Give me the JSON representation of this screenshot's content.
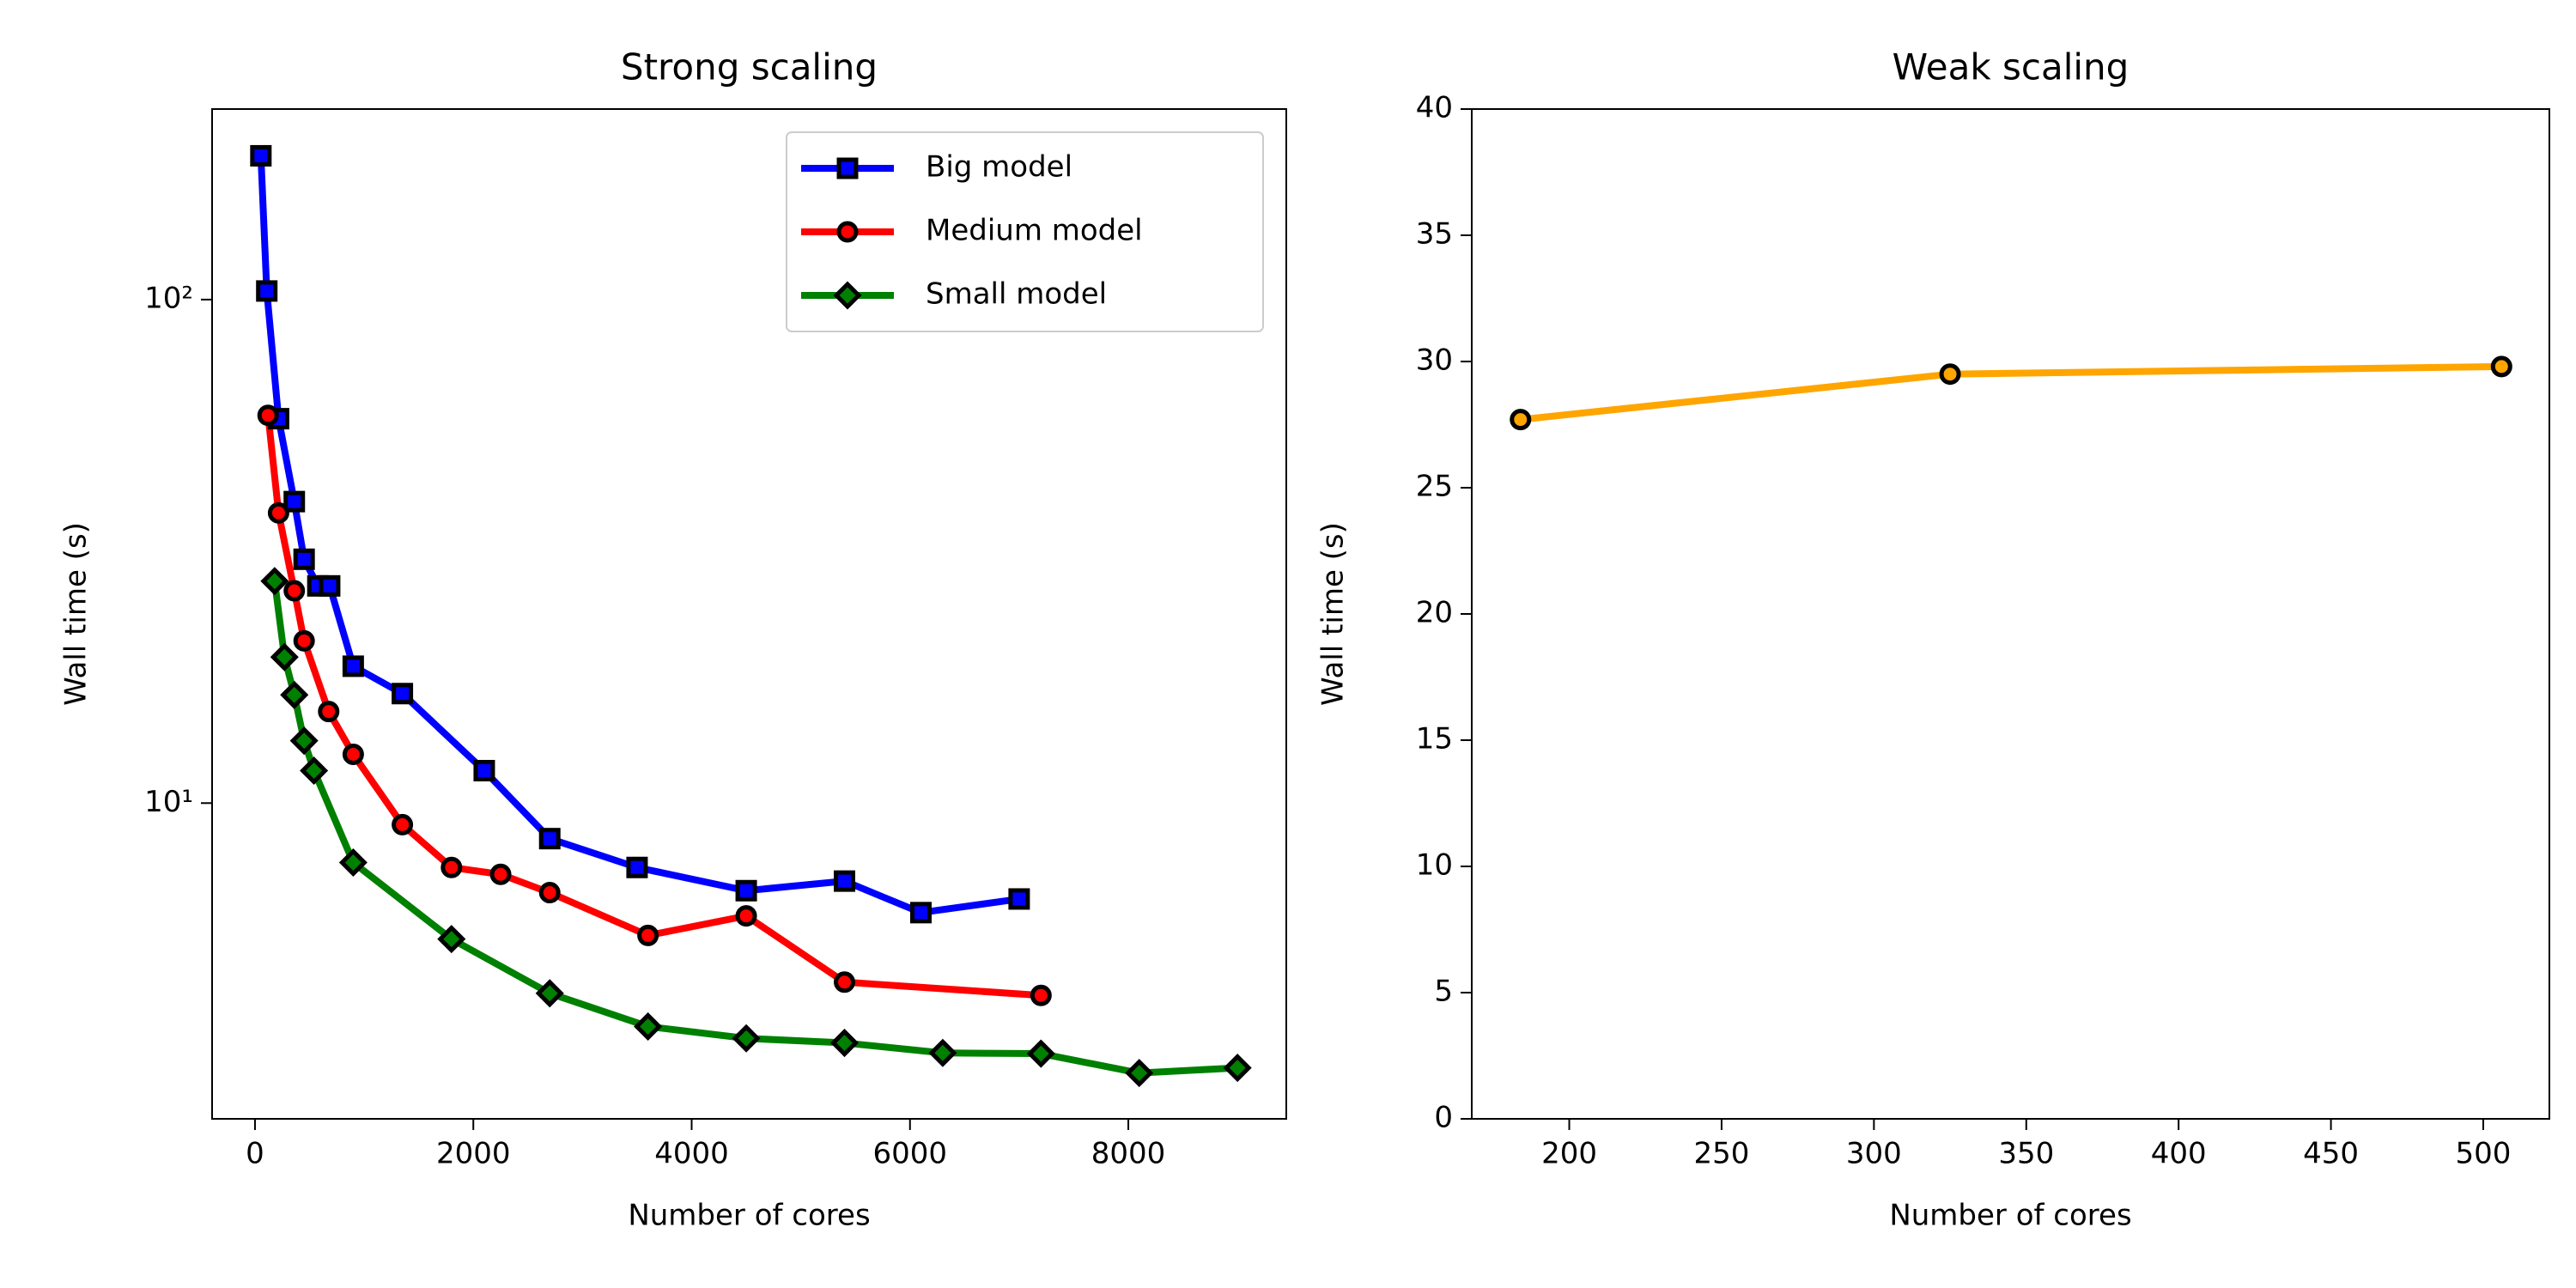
{
  "chart_data": [
    {
      "type": "line",
      "title": "Strong scaling",
      "xlabel": "Number of cores",
      "ylabel": "Wall time (s)",
      "xlim": [
        -393,
        9447
      ],
      "ylim": [
        2.36,
        239
      ],
      "yscale": "log",
      "xticks": [
        0,
        2000,
        4000,
        6000,
        8000
      ],
      "yticks": [
        {
          "value": 10,
          "label": "10¹"
        },
        {
          "value": 100,
          "label": "10²"
        }
      ],
      "legend": "upper right",
      "series": [
        {
          "name": "Big model",
          "color": "#0000ff",
          "marker": "square",
          "x": [
            54,
            108,
            216,
            360,
            450,
            576,
            684,
            900,
            1350,
            2100,
            2700,
            3500,
            4500,
            5400,
            6100,
            7000
          ],
          "values": [
            193,
            104,
            58,
            39.7,
            30.5,
            27,
            27,
            18.7,
            16.5,
            11.6,
            8.5,
            7.45,
            6.7,
            7.0,
            6.06,
            6.45
          ]
        },
        {
          "name": "Medium model",
          "color": "#ff0000",
          "marker": "circle",
          "x": [
            120,
            216,
            360,
            450,
            675,
            900,
            1350,
            1800,
            2250,
            2700,
            3600,
            4500,
            5400,
            7200
          ],
          "values": [
            58.9,
            37.7,
            26.4,
            21.0,
            15.2,
            12.5,
            9.06,
            7.45,
            7.22,
            6.64,
            5.46,
            5.97,
            4.41,
            4.15
          ]
        },
        {
          "name": "Small model",
          "color": "#008000",
          "marker": "diamond",
          "x": [
            180,
            270,
            360,
            450,
            540,
            900,
            1800,
            2700,
            3600,
            4500,
            5400,
            6300,
            7200,
            8100,
            9000
          ],
          "values": [
            27.6,
            19.5,
            16.4,
            13.3,
            11.6,
            7.62,
            5.37,
            4.19,
            3.6,
            3.41,
            3.34,
            3.19,
            3.18,
            2.91,
            2.98
          ]
        }
      ]
    },
    {
      "type": "line",
      "title": "Weak scaling",
      "xlabel": "Number of cores",
      "ylabel": "Wall time (s)",
      "xlim": [
        168,
        521.7
      ],
      "ylim": [
        0,
        40
      ],
      "xticks": [
        200,
        250,
        300,
        350,
        400,
        450,
        500
      ],
      "yticks": [
        0,
        5,
        10,
        15,
        20,
        25,
        30,
        35,
        40
      ],
      "series": [
        {
          "color": "#ffa500",
          "marker": "circle",
          "x": [
            184,
            325,
            506
          ],
          "values": [
            27.7,
            29.5,
            29.8
          ]
        }
      ]
    }
  ]
}
